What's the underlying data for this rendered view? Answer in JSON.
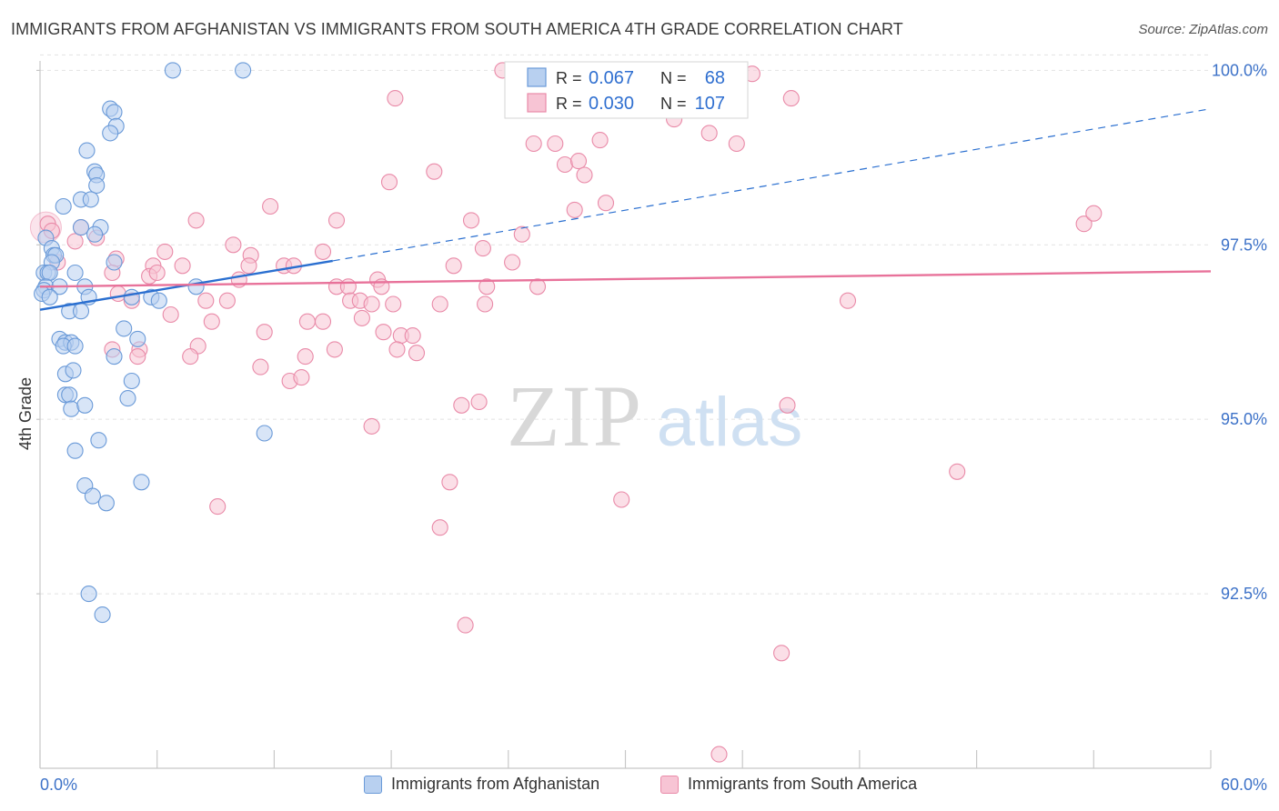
{
  "header": {
    "title": "IMMIGRANTS FROM AFGHANISTAN VS IMMIGRANTS FROM SOUTH AMERICA 4TH GRADE CORRELATION CHART",
    "source": "Source: ZipAtlas.com"
  },
  "watermark": {
    "zip": "ZIP",
    "atlas": "atlas"
  },
  "legend_top": {
    "rows": [
      {
        "r_label": "R =",
        "r_value": "0.067",
        "n_label": "N =",
        "n_value": "68"
      },
      {
        "r_label": "R =",
        "r_value": "0.030",
        "n_label": "N =",
        "n_value": "107"
      }
    ]
  },
  "legend_bottom": {
    "items": [
      "Immigrants from Afghanistan",
      "Immigrants from South America"
    ]
  },
  "colors": {
    "blue_fill": "#b8d0f0",
    "blue_stroke": "#6a9ad8",
    "blue_line": "#2a6fd0",
    "pink_fill": "#f7c4d4",
    "pink_stroke": "#e98aa8",
    "pink_line": "#e8729a",
    "tick_label": "#3d72c8",
    "grid": "#e2e2e2",
    "value_text": "#2f6fd0"
  },
  "chart_data": {
    "type": "scatter",
    "title": "IMMIGRANTS FROM AFGHANISTAN VS IMMIGRANTS FROM SOUTH AMERICA 4TH GRADE CORRELATION CHART",
    "xlabel": "",
    "ylabel": "4th Grade",
    "xlim": [
      0,
      60
    ],
    "ylim": [
      90.0,
      100.2
    ],
    "x_tick_labels": [
      "0.0%",
      "60.0%"
    ],
    "y_ticks": [
      92.5,
      95.0,
      97.5,
      100.0
    ],
    "y_tick_labels": [
      "92.5%",
      "95.0%",
      "97.5%",
      "100.0%"
    ],
    "grid": true,
    "legend_position": "top-center",
    "series": [
      {
        "name": "Immigrants from Afghanistan",
        "color": "blue",
        "r": 0.067,
        "n": 68,
        "trend": {
          "solid": [
            [
              0,
              96.57
            ],
            [
              15,
              97.27
            ]
          ],
          "dashed_to": [
            60,
            99.45
          ]
        },
        "points": [
          [
            6.8,
            100.0
          ],
          [
            10.4,
            100.0
          ],
          [
            3.6,
            99.45
          ],
          [
            3.8,
            99.4
          ],
          [
            3.9,
            99.2
          ],
          [
            3.6,
            99.1
          ],
          [
            2.4,
            98.85
          ],
          [
            2.8,
            98.55
          ],
          [
            2.9,
            98.5
          ],
          [
            2.9,
            98.35
          ],
          [
            1.2,
            98.05
          ],
          [
            2.1,
            98.15
          ],
          [
            2.6,
            98.15
          ],
          [
            2.1,
            97.75
          ],
          [
            3.1,
            97.75
          ],
          [
            2.8,
            97.65
          ],
          [
            0.3,
            97.6
          ],
          [
            0.6,
            97.45
          ],
          [
            0.7,
            97.35
          ],
          [
            0.8,
            97.35
          ],
          [
            0.6,
            97.25
          ],
          [
            0.2,
            97.1
          ],
          [
            0.4,
            97.1
          ],
          [
            0.5,
            97.1
          ],
          [
            1.8,
            97.1
          ],
          [
            3.8,
            97.25
          ],
          [
            0.3,
            96.9
          ],
          [
            1.0,
            96.9
          ],
          [
            0.2,
            96.85
          ],
          [
            0.1,
            96.8
          ],
          [
            0.5,
            96.75
          ],
          [
            2.3,
            96.9
          ],
          [
            2.5,
            96.75
          ],
          [
            4.7,
            96.75
          ],
          [
            5.7,
            96.75
          ],
          [
            6.1,
            96.7
          ],
          [
            8.0,
            96.9
          ],
          [
            1.5,
            96.55
          ],
          [
            2.1,
            96.55
          ],
          [
            4.3,
            96.3
          ],
          [
            5.0,
            96.15
          ],
          [
            1.0,
            96.15
          ],
          [
            1.3,
            96.1
          ],
          [
            1.6,
            96.1
          ],
          [
            1.2,
            96.05
          ],
          [
            1.8,
            96.05
          ],
          [
            3.8,
            95.9
          ],
          [
            1.3,
            95.65
          ],
          [
            1.7,
            95.7
          ],
          [
            4.7,
            95.55
          ],
          [
            1.3,
            95.35
          ],
          [
            1.5,
            95.35
          ],
          [
            4.5,
            95.3
          ],
          [
            1.6,
            95.15
          ],
          [
            2.3,
            95.2
          ],
          [
            11.5,
            94.8
          ],
          [
            3.0,
            94.7
          ],
          [
            1.8,
            94.55
          ],
          [
            2.3,
            94.05
          ],
          [
            5.2,
            94.1
          ],
          [
            2.7,
            93.9
          ],
          [
            3.4,
            93.8
          ],
          [
            2.5,
            92.5
          ],
          [
            3.2,
            92.2
          ]
        ]
      },
      {
        "name": "Immigrants from South America",
        "color": "pink",
        "r": 0.03,
        "n": 107,
        "trend": {
          "solid": [
            [
              0,
              96.9
            ],
            [
              60,
              97.12
            ]
          ]
        },
        "points": [
          [
            23.7,
            100.0
          ],
          [
            29.7,
            100.0
          ],
          [
            36.5,
            99.95
          ],
          [
            18.2,
            99.6
          ],
          [
            35.2,
            99.6
          ],
          [
            38.5,
            99.6
          ],
          [
            32.5,
            99.3
          ],
          [
            34.3,
            99.1
          ],
          [
            25.3,
            98.95
          ],
          [
            26.4,
            98.95
          ],
          [
            28.7,
            99.0
          ],
          [
            35.7,
            98.95
          ],
          [
            26.9,
            98.65
          ],
          [
            27.6,
            98.7
          ],
          [
            20.2,
            98.55
          ],
          [
            27.9,
            98.5
          ],
          [
            17.9,
            98.4
          ],
          [
            11.8,
            98.05
          ],
          [
            27.4,
            98.0
          ],
          [
            29.0,
            98.1
          ],
          [
            22.1,
            97.85
          ],
          [
            15.2,
            97.85
          ],
          [
            8.0,
            97.85
          ],
          [
            0.4,
            97.8
          ],
          [
            2.1,
            97.75
          ],
          [
            53.5,
            97.8
          ],
          [
            54.0,
            97.95
          ],
          [
            0.6,
            97.7
          ],
          [
            24.7,
            97.65
          ],
          [
            1.8,
            97.55
          ],
          [
            2.9,
            97.6
          ],
          [
            9.9,
            97.5
          ],
          [
            22.7,
            97.45
          ],
          [
            14.5,
            97.4
          ],
          [
            6.4,
            97.4
          ],
          [
            10.8,
            97.35
          ],
          [
            3.9,
            97.3
          ],
          [
            24.2,
            97.25
          ],
          [
            21.2,
            97.2
          ],
          [
            0.9,
            97.25
          ],
          [
            5.8,
            97.2
          ],
          [
            7.3,
            97.2
          ],
          [
            10.7,
            97.2
          ],
          [
            12.5,
            97.2
          ],
          [
            13.0,
            97.2
          ],
          [
            3.7,
            97.1
          ],
          [
            5.6,
            97.05
          ],
          [
            6.0,
            97.1
          ],
          [
            10.2,
            97.0
          ],
          [
            17.3,
            97.0
          ],
          [
            15.2,
            96.9
          ],
          [
            15.8,
            96.9
          ],
          [
            17.5,
            96.9
          ],
          [
            22.9,
            96.9
          ],
          [
            25.5,
            96.9
          ],
          [
            4.0,
            96.8
          ],
          [
            4.7,
            96.7
          ],
          [
            8.5,
            96.7
          ],
          [
            9.6,
            96.7
          ],
          [
            15.9,
            96.7
          ],
          [
            16.4,
            96.7
          ],
          [
            17.0,
            96.65
          ],
          [
            18.1,
            96.65
          ],
          [
            20.5,
            96.65
          ],
          [
            22.8,
            96.65
          ],
          [
            41.4,
            96.7
          ],
          [
            6.7,
            96.5
          ],
          [
            8.8,
            96.4
          ],
          [
            13.7,
            96.4
          ],
          [
            14.5,
            96.4
          ],
          [
            16.5,
            96.45
          ],
          [
            11.5,
            96.25
          ],
          [
            17.6,
            96.25
          ],
          [
            18.5,
            96.2
          ],
          [
            19.1,
            96.2
          ],
          [
            8.1,
            96.05
          ],
          [
            3.7,
            96.0
          ],
          [
            5.1,
            96.0
          ],
          [
            15.1,
            96.0
          ],
          [
            18.3,
            96.0
          ],
          [
            19.3,
            95.95
          ],
          [
            7.7,
            95.9
          ],
          [
            5.0,
            95.9
          ],
          [
            13.6,
            95.9
          ],
          [
            11.3,
            95.75
          ],
          [
            12.8,
            95.55
          ],
          [
            13.4,
            95.6
          ],
          [
            21.6,
            95.2
          ],
          [
            22.5,
            95.25
          ],
          [
            38.3,
            95.2
          ],
          [
            17.0,
            94.9
          ],
          [
            47.0,
            94.25
          ],
          [
            21.0,
            94.1
          ],
          [
            29.8,
            93.85
          ],
          [
            9.1,
            93.75
          ],
          [
            20.5,
            93.45
          ],
          [
            21.8,
            92.05
          ],
          [
            38.0,
            91.65
          ],
          [
            34.8,
            90.2
          ]
        ]
      }
    ]
  }
}
